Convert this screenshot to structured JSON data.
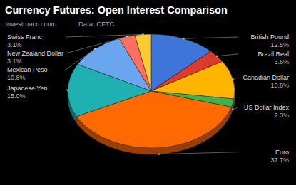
{
  "chart_data": {
    "type": "pie",
    "title": "Currency Futures: Open Interest Comparison",
    "subtitle": "Investmacro.com",
    "annotations": [
      "Data: CFTC"
    ],
    "categories": [
      "British Pound",
      "Brazil Real",
      "Canadian Dollar",
      "US Dollar Index",
      "Euro",
      "Japanese Yen",
      "Mexican Peso",
      "New Zealand Dollar",
      "Swiss Franc"
    ],
    "values": [
      12.5,
      3.6,
      10.8,
      2.3,
      37.7,
      15.0,
      10.8,
      3.1,
      3.1
    ],
    "value_labels": [
      "12.5%",
      "3.6%",
      "10.8%",
      "2.3%",
      "37.7%",
      "15.0%",
      "10.8%",
      "3.1%",
      "3.1%"
    ],
    "colors": [
      "#3f74d8",
      "#dc3a2a",
      "#ffb400",
      "#3cb44b",
      "#ff6a00",
      "#1fb0b0",
      "#6aa6f0",
      "#ff6f61",
      "#ffc933"
    ],
    "data_labels": true
  }
}
